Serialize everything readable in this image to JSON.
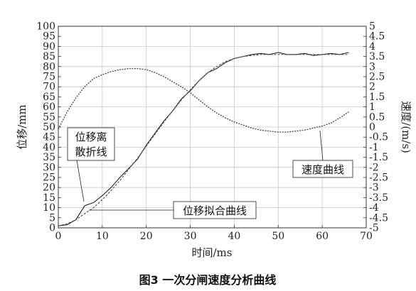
{
  "chart_data": {
    "type": "line",
    "caption": "图3 一次分闸速度分析曲线",
    "xlabel": "时间/ms",
    "ylabel_left": "位移/mm",
    "ylabel_right": "速度/(m/s)",
    "xlim": [
      0,
      70
    ],
    "ylim_left": [
      0,
      100
    ],
    "ylim_right": [
      -5,
      5
    ],
    "x_ticks": [
      "0",
      "10",
      "20",
      "30",
      "40",
      "50",
      "60",
      "70"
    ],
    "y_left_ticks": [
      "0",
      "5",
      "10",
      "15",
      "20",
      "25",
      "30",
      "35",
      "40",
      "45",
      "50",
      "55",
      "60",
      "65",
      "70",
      "75",
      "80",
      "85",
      "90",
      "95",
      "100"
    ],
    "y_right_ticks": [
      "-5",
      "-4.5",
      "-4",
      "-3.5",
      "-3",
      "-2.5",
      "-2",
      "-1.5",
      "-1",
      "-0.5",
      "0",
      "0.5",
      "1",
      "1.5",
      "2",
      "2.5",
      "3",
      "3.5",
      "4",
      "4.5",
      "5"
    ],
    "grid": true,
    "annotations": {
      "discrete": [
        "位移离",
        "散折线"
      ],
      "fit": "位移拟合曲线",
      "speed": "速度曲线"
    },
    "series": [
      {
        "name": "位移离散折线",
        "axis": "left",
        "x": [
          0,
          2,
          4,
          6,
          8,
          10,
          12,
          14,
          16,
          18,
          20,
          22,
          24,
          26,
          28,
          30,
          32,
          34,
          36,
          38,
          40,
          42,
          44,
          46,
          48,
          50,
          52,
          54,
          56,
          58,
          60,
          62,
          64,
          66
        ],
        "y": [
          1,
          1.5,
          4,
          11,
          12.5,
          16,
          20,
          25,
          29.5,
          34,
          41,
          47,
          53,
          58,
          64,
          68,
          73,
          77,
          79,
          82,
          84,
          85,
          86,
          86.5,
          86,
          87,
          86,
          86,
          86.5,
          85.5,
          86,
          86.5,
          86,
          87
        ]
      },
      {
        "name": "位移拟合曲线",
        "axis": "left",
        "x": [
          0,
          2,
          4,
          6,
          8,
          10,
          12,
          14,
          16,
          18,
          20,
          22,
          24,
          26,
          28,
          30,
          32,
          34,
          36,
          38,
          40,
          42,
          44,
          46,
          48,
          50,
          52,
          54,
          56,
          58,
          60,
          62,
          64,
          66
        ],
        "y": [
          1,
          2,
          4,
          7,
          10,
          14,
          18.5,
          23.5,
          29,
          34.5,
          40.5,
          46.5,
          52.5,
          58,
          63.5,
          68.5,
          73,
          77,
          80,
          82.5,
          84,
          85,
          85.5,
          86,
          86,
          86,
          86,
          86,
          86,
          86,
          86,
          86,
          86,
          86
        ]
      },
      {
        "name": "速度曲线",
        "axis": "right",
        "x": [
          0,
          2,
          4,
          6,
          8,
          10,
          12,
          14,
          16,
          18,
          20,
          22,
          24,
          26,
          28,
          30,
          32,
          34,
          36,
          38,
          40,
          42,
          44,
          46,
          48,
          50,
          52,
          54,
          56,
          58,
          60,
          62,
          64,
          66
        ],
        "y": [
          -0.1,
          0.75,
          1.45,
          2.0,
          2.4,
          2.6,
          2.75,
          2.85,
          2.9,
          2.9,
          2.85,
          2.7,
          2.5,
          2.25,
          2.0,
          1.7,
          1.35,
          1.0,
          0.7,
          0.45,
          0.25,
          0.1,
          -0.05,
          -0.15,
          -0.2,
          -0.25,
          -0.25,
          -0.2,
          -0.15,
          -0.05,
          0.05,
          0.2,
          0.45,
          0.75
        ]
      }
    ]
  }
}
